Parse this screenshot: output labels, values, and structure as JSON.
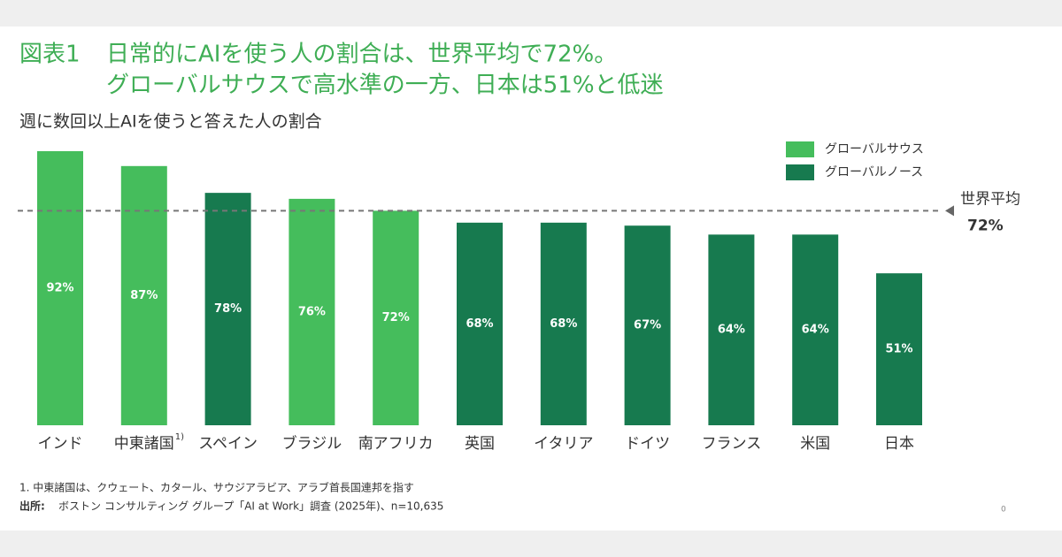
{
  "chart_data": {
    "type": "bar",
    "figure_label": "図表1",
    "title_lines": [
      "日常的にAIを使う人の割合は、世界平均で72%。",
      "グローバルサウスで高水準の一方、日本は51%と低迷"
    ],
    "subtitle": "週に数回以上AIを使うと答えた人の割合",
    "categories": [
      "インド",
      "中東諸国",
      "スペイン",
      "ブラジル",
      "南アフリカ",
      "英国",
      "イタリア",
      "ドイツ",
      "フランス",
      "米国",
      "日本"
    ],
    "category_note": {
      "index": 1,
      "marker": "1)"
    },
    "series": [
      {
        "name": "グローバルサウス",
        "color": "#45bd5c",
        "values": [
          92,
          87,
          null,
          76,
          72,
          null,
          null,
          null,
          null,
          null,
          null
        ],
        "value_labels": [
          "92%",
          "87%",
          null,
          "76%",
          "72%",
          null,
          null,
          null,
          null,
          null,
          null
        ]
      },
      {
        "name": "グローバルノース",
        "color": "#177a4f",
        "values": [
          null,
          null,
          78,
          null,
          null,
          68,
          68,
          67,
          64,
          64,
          51
        ],
        "value_labels": [
          null,
          null,
          "78%",
          null,
          null,
          "68%",
          "68%",
          "67%",
          "64%",
          "64%",
          "51%"
        ]
      }
    ],
    "ylim": [
      0,
      100
    ],
    "reference_line": {
      "label": "世界平均",
      "value": 72,
      "value_label": "72%"
    },
    "footnote": "1. 中東諸国は、クウェート、カタール、サウジアラビア、アラブ首長国連邦を指す",
    "source_label": "出所:",
    "source": "ボストン コンサルティング グループ「AI at Work」調査 (2025年)、n=10,635",
    "page_number": "0"
  }
}
